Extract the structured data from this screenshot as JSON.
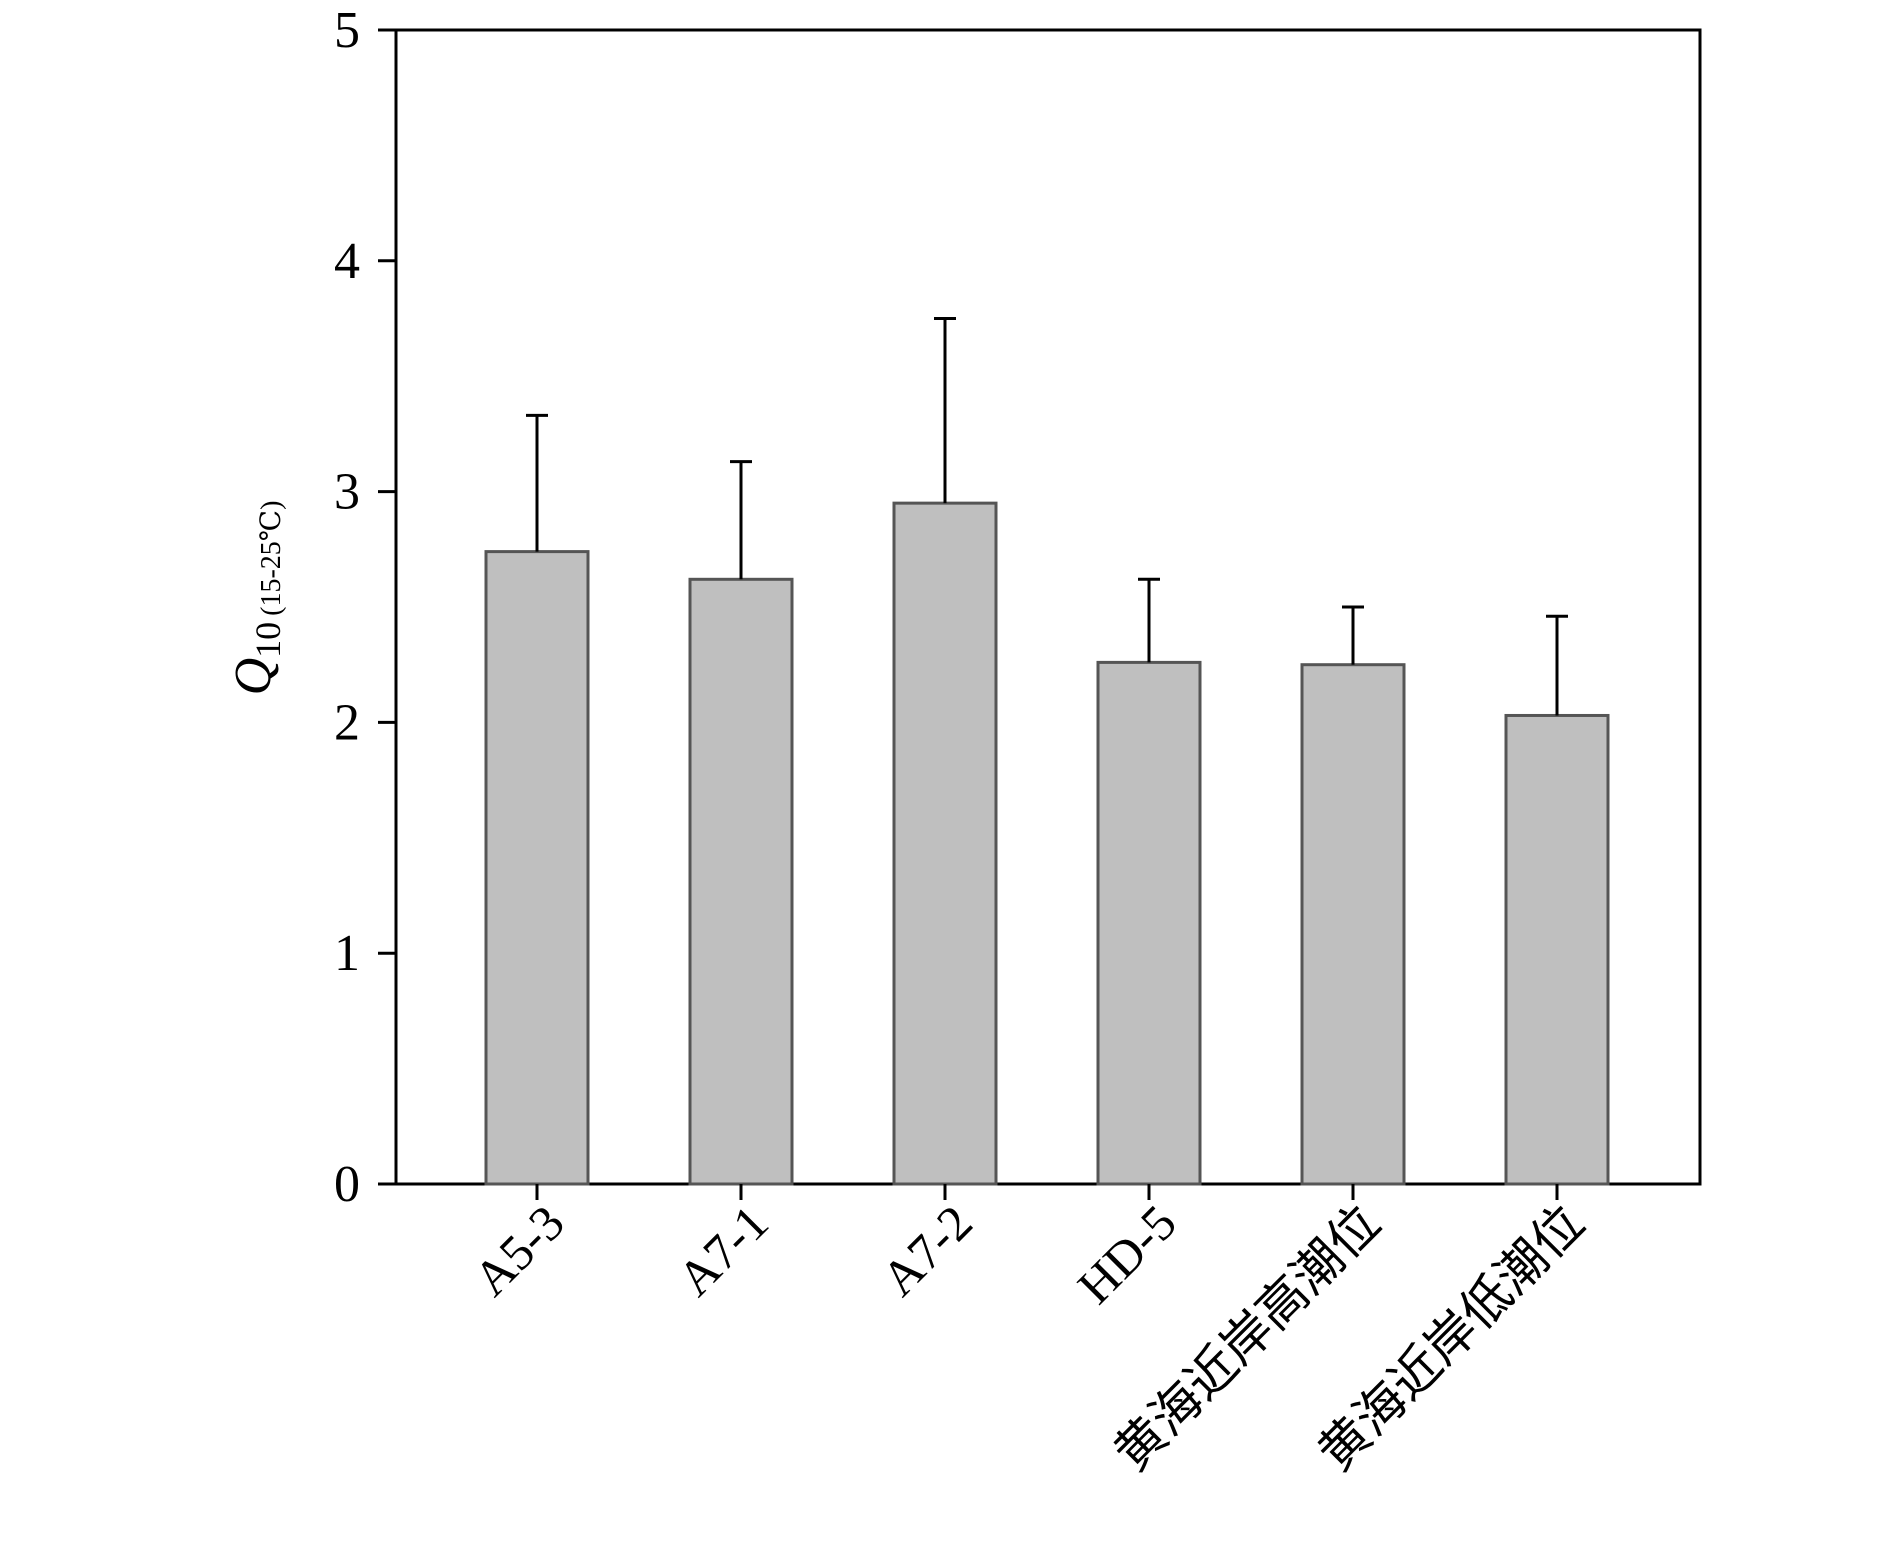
{
  "chart_data": {
    "type": "bar",
    "ylabel": {
      "main": "Q",
      "sub": "10",
      "range": "(15-25℃)"
    },
    "categories": [
      "A5-3",
      "A7-1",
      "A7-2",
      "HD-5",
      "黄海近岸高潮位",
      "黄海近岸低潮位"
    ],
    "values": [
      2.74,
      2.62,
      2.95,
      2.26,
      2.25,
      2.03
    ],
    "errors": [
      0.59,
      0.51,
      0.8,
      0.36,
      0.25,
      0.43
    ],
    "ylim": [
      0,
      5
    ],
    "yticks": [
      "0",
      "1",
      "2",
      "3",
      "4",
      "5"
    ],
    "grid": false,
    "colors": {
      "bar_fill": "#bfbfbf",
      "bar_stroke": "#555555",
      "error_bar": "#000000",
      "axis": "#000000"
    }
  }
}
